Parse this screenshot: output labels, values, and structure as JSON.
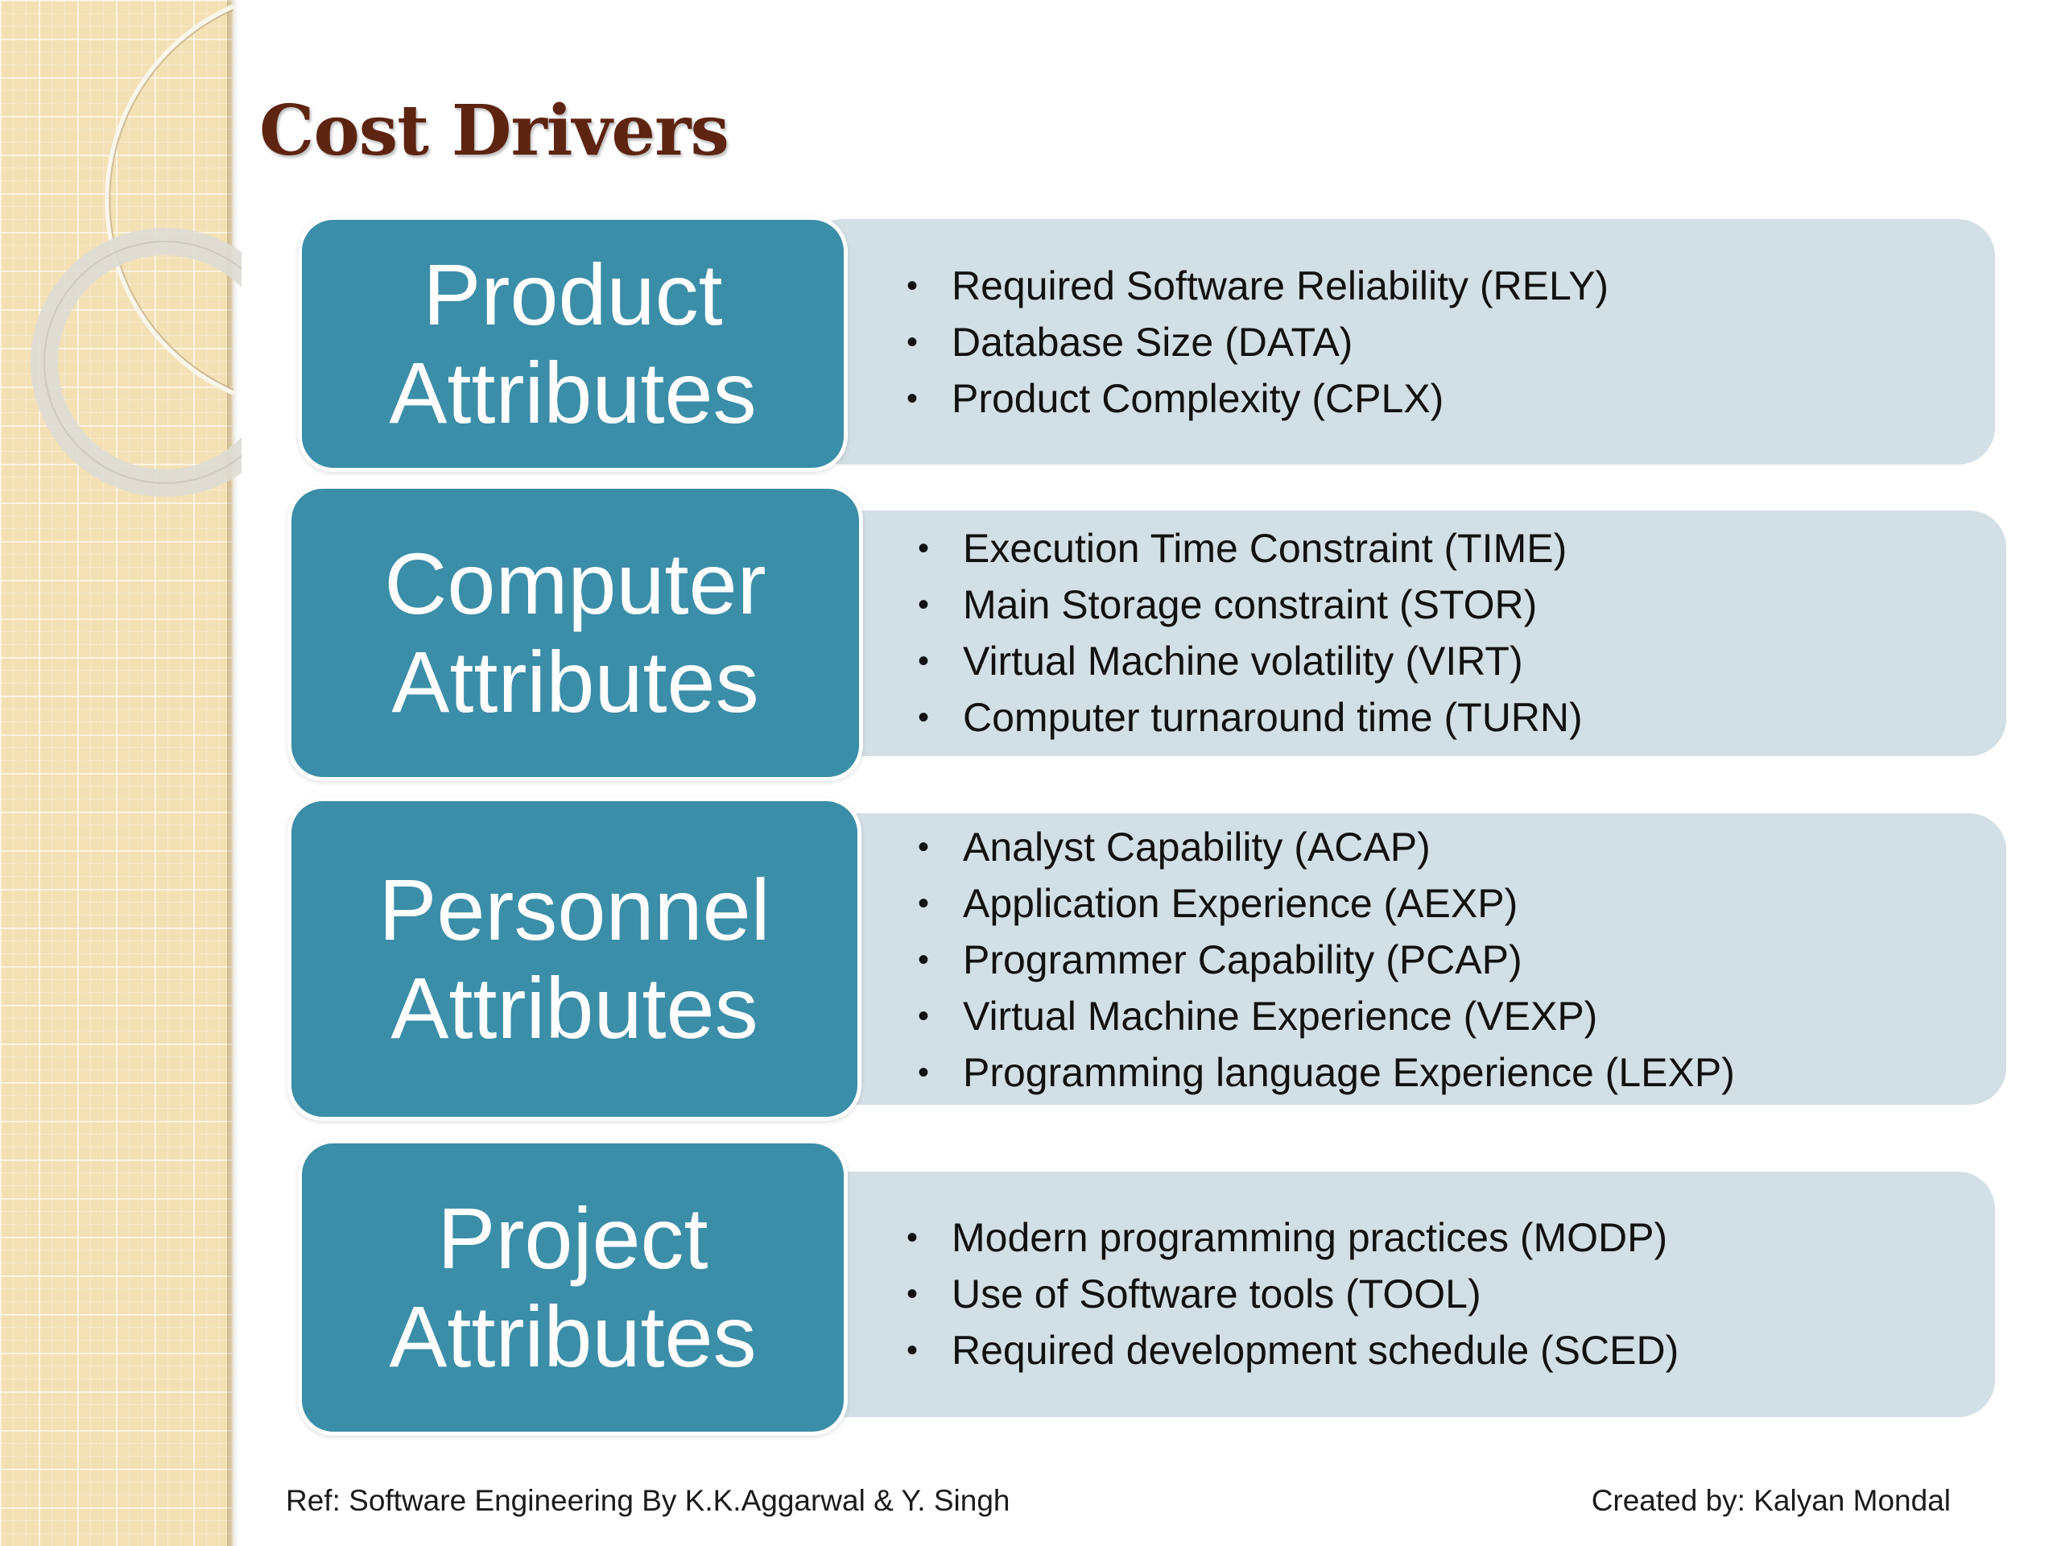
{
  "slide": {
    "title": "Cost Drivers",
    "groups": [
      {
        "label_line1": "Product",
        "label_line2": "Attributes",
        "items": [
          "Required Software Reliability (RELY)",
          "Database Size (DATA)",
          "Product Complexity (CPLX)"
        ]
      },
      {
        "label_line1": "Computer",
        "label_line2": "Attributes",
        "items": [
          "Execution Time Constraint (TIME)",
          "Main Storage constraint (STOR)",
          "Virtual Machine volatility (VIRT)",
          "Computer turnaround time (TURN)"
        ]
      },
      {
        "label_line1": "Personnel",
        "label_line2": "Attributes",
        "items": [
          "Analyst Capability (ACAP)",
          "Application Experience (AEXP)",
          "Programmer Capability (PCAP)",
          "Virtual Machine Experience (VEXP)",
          "Programming language Experience (LEXP)"
        ]
      },
      {
        "label_line1": "Project",
        "label_line2": "Attributes",
        "items": [
          "Modern programming practices (MODP)",
          "Use of Software tools (TOOL)",
          "Required development schedule (SCED)"
        ]
      }
    ],
    "bullet_glyph": "•",
    "footer": {
      "reference": "Ref: Software Engineering By K.K.Aggarwal & Y. Singh",
      "credit": "Created by: Kalyan Mondal"
    }
  },
  "colors": {
    "title": "#5e2412",
    "label_fill": "#3b8ea8",
    "content_fill": "#d2dfe4",
    "side_strip": "#f3e0b5"
  }
}
